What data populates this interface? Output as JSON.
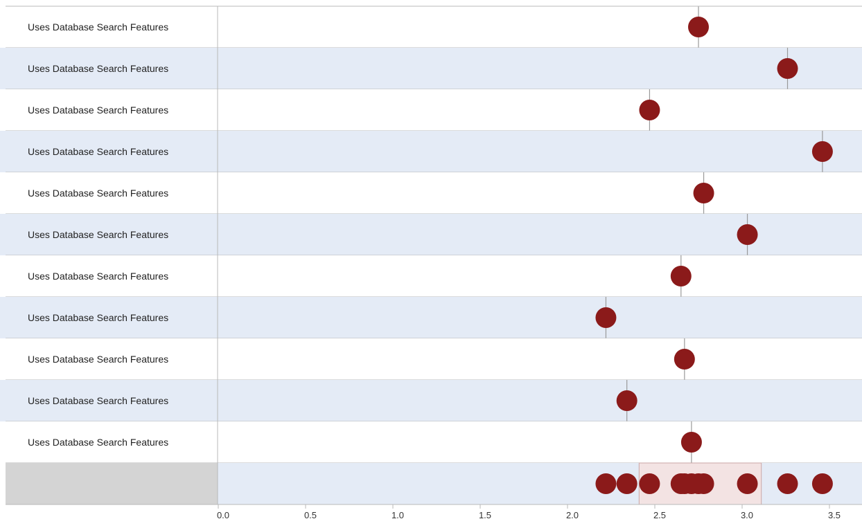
{
  "chart_data": {
    "type": "scatter",
    "rows": [
      {
        "label": "Uses Database Search Features",
        "value": 2.75
      },
      {
        "label": "Uses Database Search Features",
        "value": 3.26
      },
      {
        "label": "Uses Database Search Features",
        "value": 2.47
      },
      {
        "label": "Uses Database Search Features",
        "value": 3.46
      },
      {
        "label": "Uses Database Search Features",
        "value": 2.78
      },
      {
        "label": "Uses Database Search Features",
        "value": 3.03
      },
      {
        "label": "Uses Database Search Features",
        "value": 2.65
      },
      {
        "label": "Uses Database Search Features",
        "value": 2.22
      },
      {
        "label": "Uses Database Search Features",
        "value": 2.67
      },
      {
        "label": "Uses Database Search Features",
        "value": 2.34
      },
      {
        "label": "Uses Database Search Features",
        "value": 2.71
      }
    ],
    "summary": {
      "label": "",
      "box_range": [
        2.41,
        3.11
      ]
    },
    "x_ticks": [
      "0.0",
      "0.5",
      "1.0",
      "1.5",
      "2.0",
      "2.5",
      "3.0",
      "3.5"
    ],
    "xlim": [
      0,
      3.7
    ],
    "colors": {
      "marker": "#8b1a1a",
      "reference_line": "#999999",
      "row_alt": "#e4ebf6",
      "row_base": "#ffffff",
      "summary_label_bg": "#d4d4d4",
      "summary_box": "#f3e3e3",
      "grid": "#b8b8b8"
    }
  }
}
